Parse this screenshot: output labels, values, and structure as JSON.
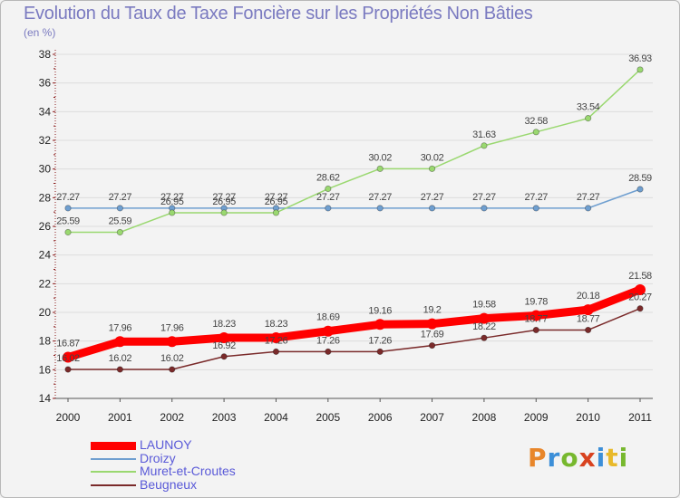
{
  "header": {
    "title": "Evolution du Taux de Taxe Foncière sur les Propriétés Non Bâties",
    "subtitle": "(en %)"
  },
  "logo": {
    "letters": [
      "P",
      "r",
      "o",
      "x",
      "i",
      "t",
      "i"
    ],
    "colors": [
      "#e8862a",
      "#3c8fd8",
      "#77b82e",
      "#d8421f",
      "#3c8fd8",
      "#e8b92a",
      "#77b82e"
    ]
  },
  "chart_data": {
    "type": "line",
    "title": "Evolution du Taux de Taxe Foncière sur les Propriétés Non Bâties",
    "ylabel": "(en %)",
    "x": [
      2000,
      2001,
      2002,
      2003,
      2004,
      2005,
      2006,
      2007,
      2008,
      2009,
      2010,
      2011
    ],
    "ylim": [
      14,
      38
    ],
    "yticks": [
      14,
      16,
      18,
      20,
      22,
      24,
      26,
      28,
      30,
      32,
      34,
      36,
      38
    ],
    "grid": "horizontal",
    "legend": "bottom-left",
    "series": [
      {
        "name": "LAUNOY",
        "color": "#ff0000",
        "values": [
          16.87,
          17.96,
          17.96,
          18.23,
          18.23,
          18.69,
          19.16,
          19.2,
          19.58,
          19.78,
          20.18,
          21.58
        ],
        "labels": [
          "16.87",
          "17.96",
          "17.96",
          "18.23",
          "18.23",
          "18.69",
          "19.16",
          "19.2",
          "19.58",
          "19.78",
          "20.18",
          "21.58"
        ]
      },
      {
        "name": "Droizy",
        "color": "#6f9fd0",
        "values": [
          27.27,
          27.27,
          27.27,
          27.27,
          27.27,
          27.27,
          27.27,
          27.27,
          27.27,
          27.27,
          27.27,
          28.59
        ],
        "labels": [
          "27.27",
          "27.27",
          "27.27",
          "27.27",
          "27.27",
          "27.27",
          "27.27",
          "27.27",
          "27.27",
          "27.27",
          "27.27",
          "28.59"
        ]
      },
      {
        "name": "Muret-et-Croutes",
        "color": "#9ad870",
        "values": [
          25.59,
          25.59,
          26.95,
          26.95,
          26.95,
          28.62,
          30.02,
          30.02,
          31.63,
          32.58,
          33.54,
          36.93
        ],
        "labels": [
          "25.59",
          "25.59",
          "26.95",
          "26.95",
          "26.95",
          "28.62",
          "30.02",
          "30.02",
          "31.63",
          "32.58",
          "33.54",
          "36.93"
        ]
      },
      {
        "name": "Beugneux",
        "color": "#7a2a2a",
        "values": [
          16.02,
          16.02,
          16.02,
          16.92,
          17.26,
          17.26,
          17.26,
          17.69,
          18.22,
          18.77,
          18.77,
          20.27
        ],
        "labels": [
          "16.02",
          "16.02",
          "16.02",
          "16.92",
          "17.26",
          "17.26",
          "17.26",
          "17.69",
          "18.22",
          "18.77",
          "18.77",
          "20.27"
        ]
      }
    ]
  }
}
